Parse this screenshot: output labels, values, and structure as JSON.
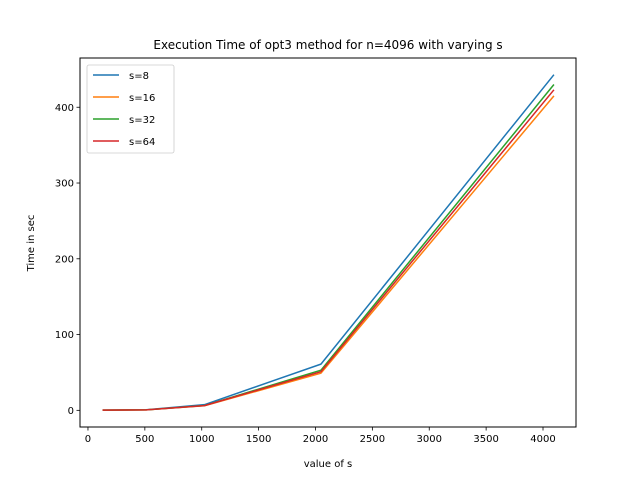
{
  "chart_data": {
    "type": "line",
    "title": "Execution Time of opt3 method for n=4096 with varying s",
    "xlabel": "value of s",
    "ylabel": "Time in sec",
    "xlim": [
      -70,
      4290
    ],
    "ylim": [
      -22,
      465
    ],
    "xticks": [
      0,
      500,
      1000,
      1500,
      2000,
      2500,
      3000,
      3500,
      4000
    ],
    "yticks": [
      0,
      100,
      200,
      300,
      400
    ],
    "grid": false,
    "legend_position": "top-left",
    "x": [
      128,
      512,
      1024,
      2048,
      4096
    ],
    "series": [
      {
        "name": "s=8",
        "color": "#1f77b4",
        "values": [
          0.3,
          0.8,
          7.5,
          61,
          443
        ]
      },
      {
        "name": "s=16",
        "color": "#ff7f0e",
        "values": [
          0.2,
          0.6,
          6.0,
          49,
          415
        ]
      },
      {
        "name": "s=32",
        "color": "#2ca02c",
        "values": [
          0.2,
          0.6,
          6.3,
          53,
          430
        ]
      },
      {
        "name": "s=64",
        "color": "#d62728",
        "values": [
          0.2,
          0.6,
          6.2,
          51,
          423
        ]
      }
    ]
  }
}
